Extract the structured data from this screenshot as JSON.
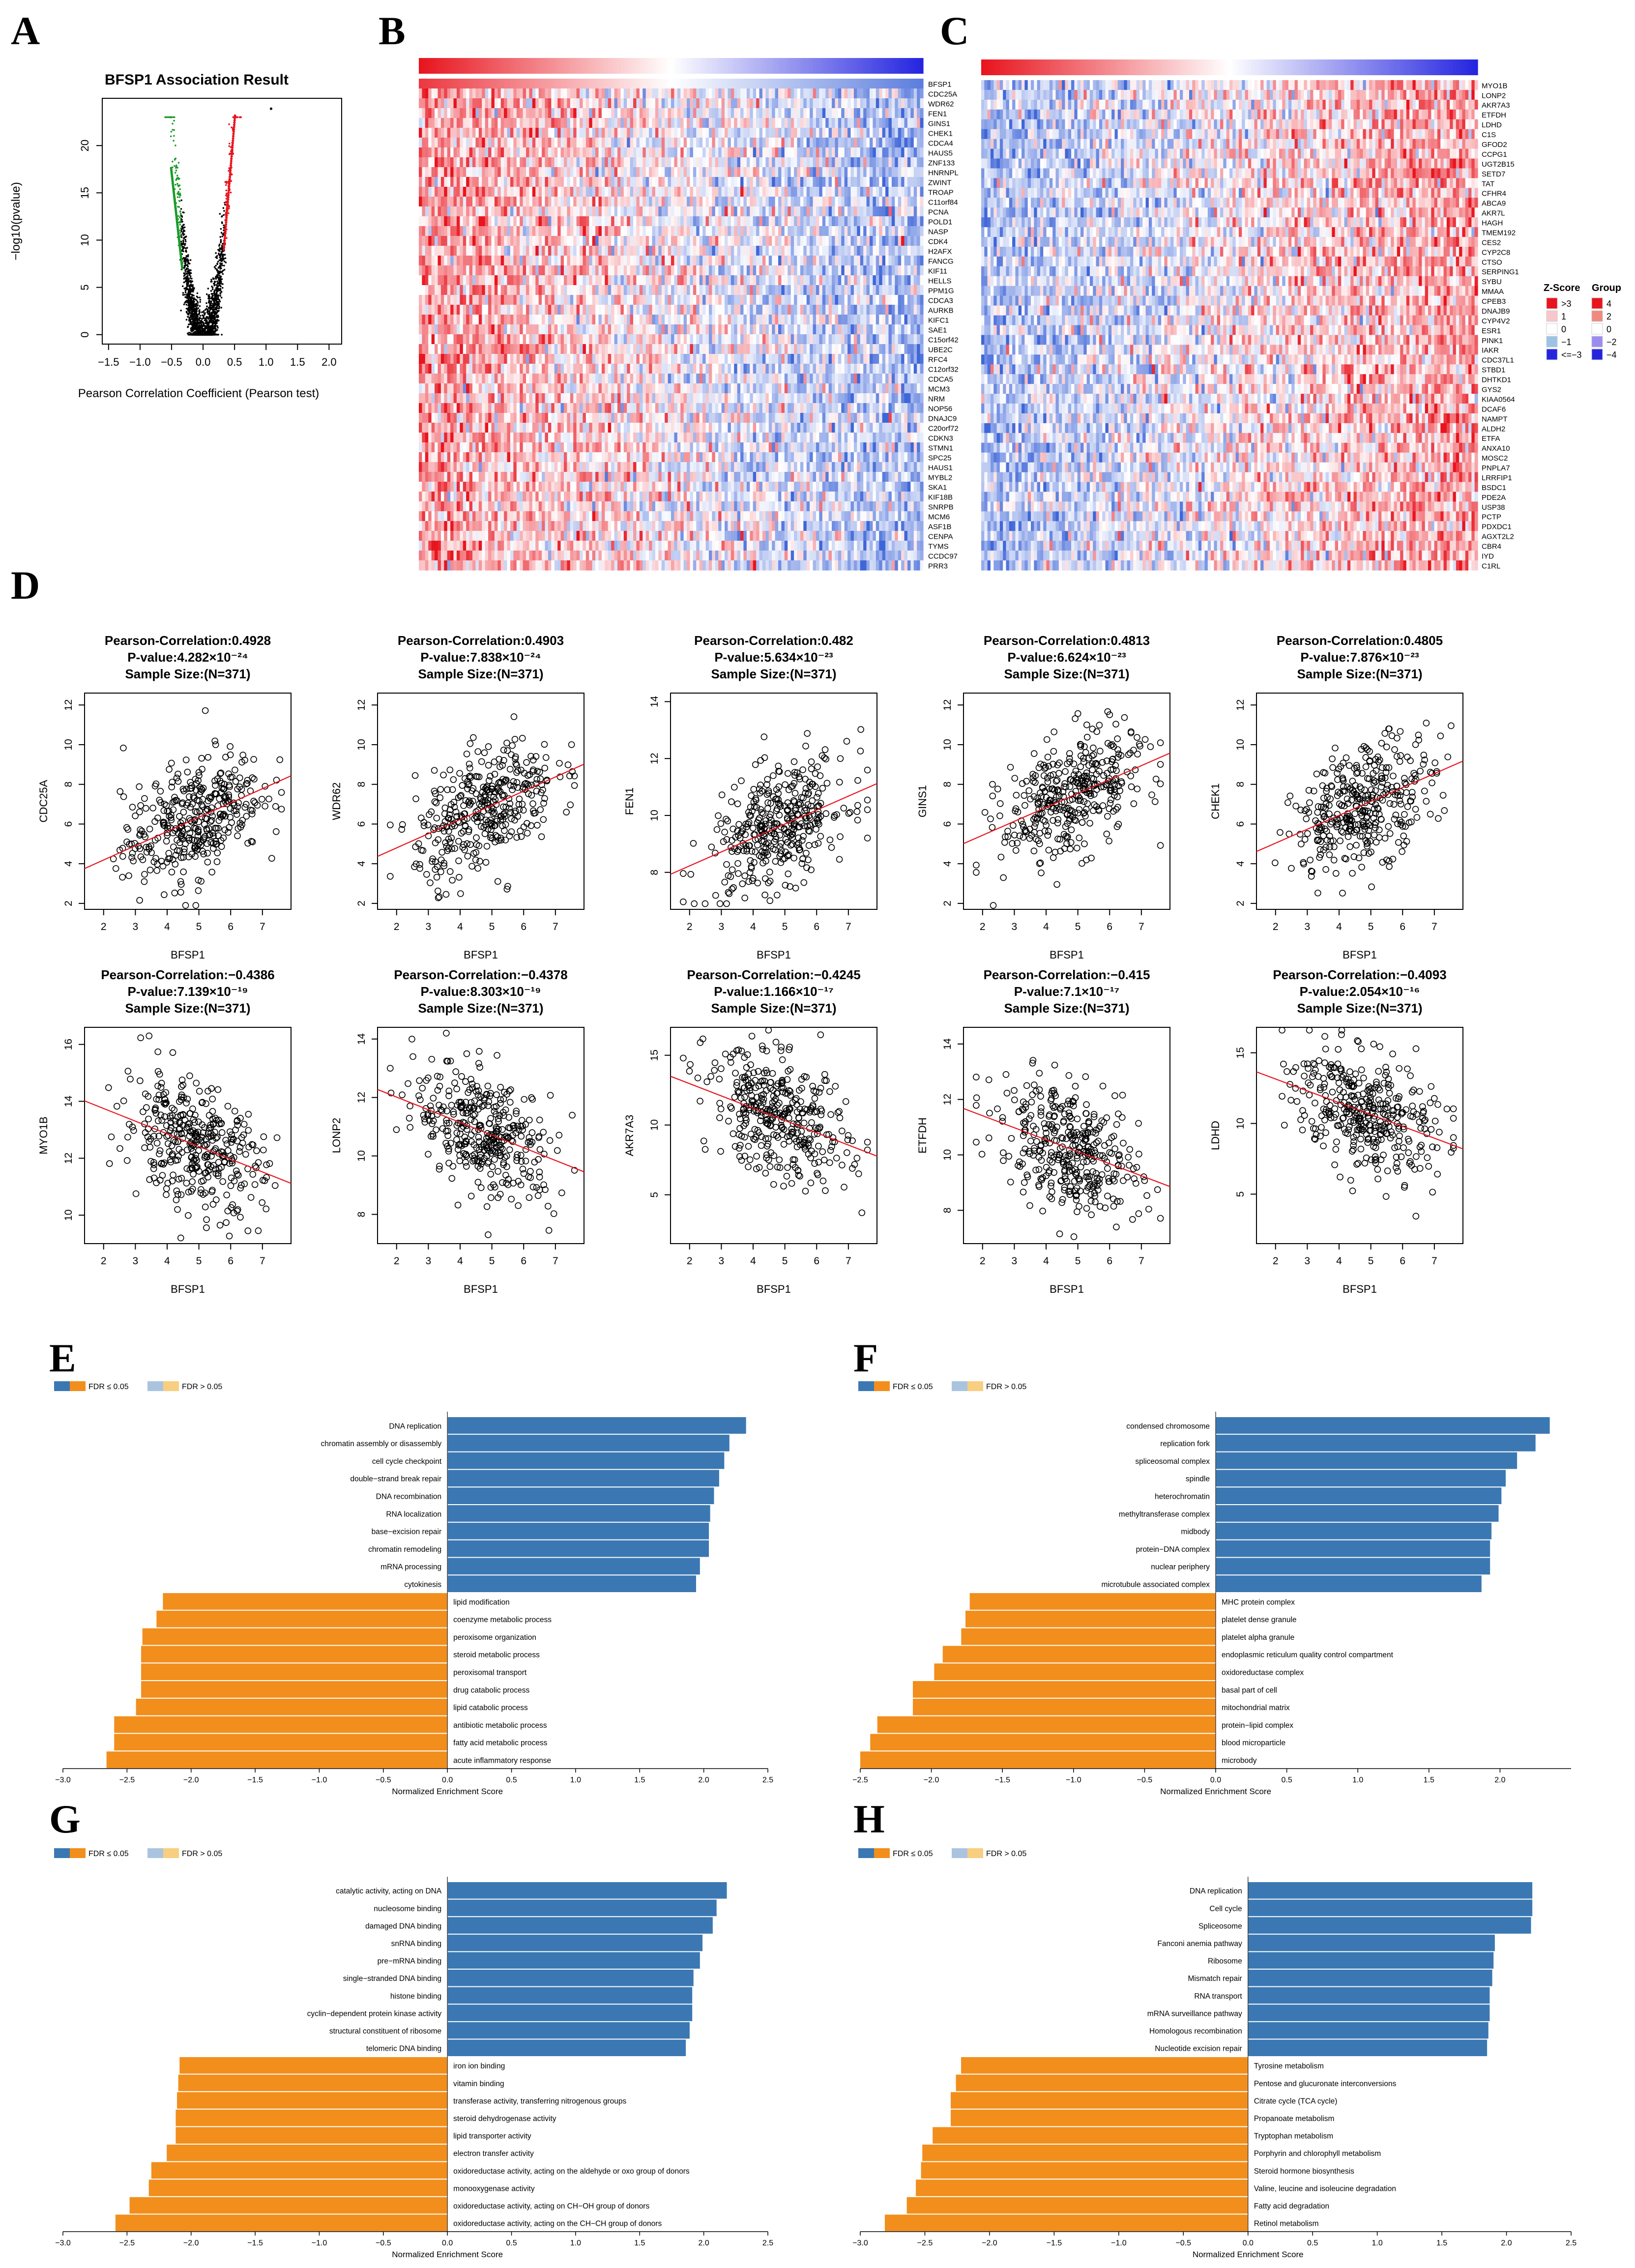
{
  "panels": {
    "A": "A",
    "B": "B",
    "C": "C",
    "D": "D",
    "E": "E",
    "F": "F",
    "G": "G",
    "H": "H"
  },
  "colors": {
    "positive": "#3b78b3",
    "negative": "#f28e1c",
    "volcano_pos": "#e8141e",
    "volcano_neg": "#1a9a28",
    "heat_high": "#e8141e",
    "heat_low": "#2525e0",
    "fit_line": "#e8141e"
  },
  "chart_data": [
    {
      "id": "A",
      "type": "scatter",
      "title": "BFSP1 Association Result",
      "xlabel": "Pearson Correlation Coefficient (Pearson test)",
      "ylabel": "−log10(pvalue)",
      "xlim": [
        -1.6,
        2.2
      ],
      "ylim": [
        -1,
        25
      ],
      "xticks": [
        "−1.5",
        "−1.0",
        "−0.5",
        "0.0",
        "0.5",
        "1.0",
        "1.5",
        "2.0"
      ],
      "xtick_values": [
        -1.5,
        -1.0,
        -0.5,
        0.0,
        0.5,
        1.0,
        1.5,
        2.0
      ],
      "yticks": [
        "0",
        "5",
        "10",
        "15",
        "20"
      ],
      "ytick_values": [
        0,
        5,
        10,
        15,
        20
      ],
      "outlier": {
        "x": 1.08,
        "y": 23.9
      }
    },
    {
      "id": "B",
      "type": "heatmap",
      "genes": [
        "BFSP1",
        "CDC25A",
        "WDR62",
        "FEN1",
        "GINS1",
        "CHEK1",
        "CDCA4",
        "HAUS5",
        "ZNF133",
        "HNRNPL",
        "ZWINT",
        "TROAP",
        "C11orf84",
        "PCNA",
        "POLD1",
        "NASP",
        "CDK4",
        "H2AFX",
        "FANCG",
        "KIF11",
        "HELLS",
        "PPM1G",
        "CDCA3",
        "AURKB",
        "KIFC1",
        "SAE1",
        "C15orf42",
        "UBE2C",
        "RFC4",
        "C12orf32",
        "CDCA5",
        "MCM3",
        "NRM",
        "NOP56",
        "DNAJC9",
        "C20orf72",
        "CDKN3",
        "STMN1",
        "SPC25",
        "HAUS1",
        "MYBL2",
        "SKA1",
        "KIF18B",
        "SNRPB",
        "MCM6",
        "ASF1B",
        "CENPA",
        "TYMS",
        "CCDC97",
        "PRR3"
      ]
    },
    {
      "id": "C",
      "type": "heatmap",
      "genes": [
        "MYO1B",
        "LONP2",
        "AKR7A3",
        "ETFDH",
        "LDHD",
        "C1S",
        "GFOD2",
        "CCPG1",
        "UGT2B15",
        "SETD7",
        "TAT",
        "CFHR4",
        "ABCA9",
        "AKR7L",
        "HAGH",
        "TMEM192",
        "CES2",
        "CYP2C8",
        "CTSO",
        "SERPING1",
        "SYBU",
        "MMAA",
        "CPEB3",
        "DNAJB9",
        "CYP4V2",
        "ESR1",
        "PINK1",
        "IAKR",
        "CDC37L1",
        "STBD1",
        "DHTKD1",
        "GYS2",
        "KIAA0564",
        "DCAF6",
        "NAMPT",
        "ALDH2",
        "ETFA",
        "ANXA10",
        "MOSC2",
        "PNPLA7",
        "LRRFIP1",
        "BSDC1",
        "PDE2A",
        "USP38",
        "PCTP",
        "PDXDC1",
        "AGXT2L2",
        "CBR4",
        "IYD",
        "C1RL"
      ],
      "legend": {
        "zscore_title": "Z-Score",
        "group_title": "Group",
        "zscore_labels": [
          ">3",
          "1",
          "0",
          "−1",
          "<=−3"
        ],
        "group_labels": [
          "4",
          "2",
          "0",
          "−2",
          "−4"
        ]
      }
    },
    {
      "id": "D",
      "type": "scatter",
      "n_points": 371,
      "plots": [
        {
          "ylabel": "CDC25A",
          "xlabel": "BFSP1",
          "title1": "Pearson-Correlation:0.4928",
          "title2": "P-value:4.282×10⁻²⁴",
          "title3": "Sample Size:(N=371)",
          "r": 0.4928,
          "xlim": [
            1.4,
            7.9
          ],
          "ylim": [
            1.7,
            12.6
          ],
          "xticks": [
            2,
            3,
            4,
            5,
            6,
            7
          ],
          "yticks": [
            2,
            4,
            6,
            8,
            10,
            12
          ],
          "ymean": 6.2
        },
        {
          "ylabel": "WDR62",
          "xlabel": "BFSP1",
          "title1": "Pearson-Correlation:0.4903",
          "title2": "P-value:7.838×10⁻²⁴",
          "title3": "Sample Size:(N=371)",
          "r": 0.4903,
          "xlim": [
            1.4,
            7.9
          ],
          "ylim": [
            1.7,
            12.6
          ],
          "xticks": [
            2,
            3,
            4,
            5,
            6,
            7
          ],
          "yticks": [
            2,
            4,
            6,
            8,
            10,
            12
          ],
          "ymean": 6.8
        },
        {
          "ylabel": "FEN1",
          "xlabel": "BFSP1",
          "title1": "Pearson-Correlation:0.482",
          "title2": "P-value:5.634×10⁻²³",
          "title3": "Sample Size:(N=371)",
          "r": 0.482,
          "xlim": [
            1.4,
            7.9
          ],
          "ylim": [
            6.7,
            14.3
          ],
          "xticks": [
            2,
            3,
            4,
            5,
            6,
            7
          ],
          "yticks": [
            8,
            10,
            12,
            14
          ],
          "ymean": 9.6
        },
        {
          "ylabel": "GINS1",
          "xlabel": "BFSP1",
          "title1": "Pearson-Correlation:0.4813",
          "title2": "P-value:6.624×10⁻²³",
          "title3": "Sample Size:(N=371)",
          "r": 0.4813,
          "xlim": [
            1.4,
            7.9
          ],
          "ylim": [
            1.7,
            12.6
          ],
          "xticks": [
            2,
            3,
            4,
            5,
            6,
            7
          ],
          "yticks": [
            2,
            4,
            6,
            8,
            10,
            12
          ],
          "ymean": 7.4
        },
        {
          "ylabel": "CHEK1",
          "xlabel": "BFSP1",
          "title1": "Pearson-Correlation:0.4805",
          "title2": "P-value:7.876×10⁻²³",
          "title3": "Sample Size:(N=371)",
          "r": 0.4805,
          "xlim": [
            1.4,
            7.9
          ],
          "ylim": [
            1.7,
            12.6
          ],
          "xticks": [
            2,
            3,
            4,
            5,
            6,
            7
          ],
          "yticks": [
            2,
            4,
            6,
            8,
            10,
            12
          ],
          "ymean": 7.0
        },
        {
          "ylabel": "MYO1B",
          "xlabel": "BFSP1",
          "title1": "Pearson-Correlation:−0.4386",
          "title2": "P-value:7.139×10⁻¹⁹",
          "title3": "Sample Size:(N=371)",
          "r": -0.4386,
          "xlim": [
            1.4,
            7.9
          ],
          "ylim": [
            9.0,
            16.6
          ],
          "xticks": [
            2,
            3,
            4,
            5,
            6,
            7
          ],
          "yticks": [
            10,
            12,
            14,
            16
          ],
          "ymean": 12.5
        },
        {
          "ylabel": "LONP2",
          "xlabel": "BFSP1",
          "title1": "Pearson-Correlation:−0.4378",
          "title2": "P-value:8.303×10⁻¹⁹",
          "title3": "Sample Size:(N=371)",
          "r": -0.4378,
          "xlim": [
            1.4,
            7.9
          ],
          "ylim": [
            7.0,
            14.4
          ],
          "xticks": [
            2,
            3,
            4,
            5,
            6,
            7
          ],
          "yticks": [
            8,
            10,
            12,
            14
          ],
          "ymean": 10.8
        },
        {
          "ylabel": "AKR7A3",
          "xlabel": "BFSP1",
          "title1": "Pearson-Correlation:−0.4245",
          "title2": "P-value:1.166×10⁻¹⁷",
          "title3": "Sample Size:(N=371)",
          "r": -0.4245,
          "xlim": [
            1.4,
            7.9
          ],
          "ylim": [
            1.5,
            17.0
          ],
          "xticks": [
            2,
            3,
            4,
            5,
            6,
            7
          ],
          "yticks": [
            5,
            10,
            15
          ],
          "ymean": 10.5
        },
        {
          "ylabel": "ETFDH",
          "xlabel": "BFSP1",
          "title1": "Pearson-Correlation:−0.415",
          "title2": "P-value:7.1×10⁻¹⁷",
          "title3": "Sample Size:(N=371)",
          "r": -0.415,
          "xlim": [
            1.4,
            7.9
          ],
          "ylim": [
            6.8,
            14.6
          ],
          "xticks": [
            2,
            3,
            4,
            5,
            6,
            7
          ],
          "yticks": [
            8,
            10,
            12,
            14
          ],
          "ymean": 10.2
        },
        {
          "ylabel": "LDHD",
          "xlabel": "BFSP1",
          "title1": "Pearson-Correlation:−0.4093",
          "title2": "P-value:2.054×10⁻¹⁶",
          "title3": "Sample Size:(N=371)",
          "r": -0.4093,
          "xlim": [
            1.4,
            7.9
          ],
          "ylim": [
            1.5,
            16.8
          ],
          "xticks": [
            2,
            3,
            4,
            5,
            6,
            7
          ],
          "yticks": [
            5,
            10,
            15
          ],
          "ymean": 10.8
        }
      ]
    },
    {
      "id": "E",
      "type": "bar",
      "legend": [
        "FDR ≤ 0.05",
        "FDR > 0.05"
      ],
      "xlabel": "Normalized Enrichment Score",
      "xlim": [
        -3.0,
        2.5
      ],
      "xticks": [
        -3.0,
        -2.5,
        -2.0,
        -1.5,
        -1.0,
        -0.5,
        0.0,
        0.5,
        1.0,
        1.5,
        2.0,
        2.5
      ],
      "categories": [
        "DNA replication",
        "chromatin assembly or disassembly",
        "cell cycle checkpoint",
        "double−strand break repair",
        "DNA recombination",
        "RNA localization",
        "base−excision repair",
        "chromatin remodeling",
        "mRNA processing",
        "cytokinesis",
        "lipid modification",
        "coenzyme metabolic process",
        "peroxisome organization",
        "steroid metabolic process",
        "peroxisomal transport",
        "drug catabolic process",
        "lipid catabolic process",
        "antibiotic metabolic process",
        "fatty acid metabolic process",
        "acute inflammatory response"
      ],
      "values": [
        2.33,
        2.2,
        2.16,
        2.12,
        2.08,
        2.05,
        2.04,
        2.04,
        1.97,
        1.94,
        -2.22,
        -2.27,
        -2.38,
        -2.39,
        -2.39,
        -2.39,
        -2.43,
        -2.6,
        -2.6,
        -2.66
      ]
    },
    {
      "id": "F",
      "type": "bar",
      "legend": [
        "FDR ≤ 0.05",
        "FDR > 0.05"
      ],
      "xlabel": "Normalized Enrichment Score",
      "xlim": [
        -2.5,
        2.5
      ],
      "xticks": [
        -2.5,
        -2.0,
        -1.5,
        -1.0,
        -0.5,
        0.0,
        0.5,
        1.0,
        1.5,
        2.0
      ],
      "categories": [
        "condensed chromosome",
        "replication fork",
        "spliceosomal complex",
        "spindle",
        "heterochromatin",
        "methyltransferase complex",
        "midbody",
        "protein−DNA complex",
        "nuclear periphery",
        "microtubule associated complex",
        "MHC protein complex",
        "platelet dense granule",
        "platelet alpha granule",
        "endoplasmic reticulum quality control compartment",
        "oxidoreductase complex",
        "basal part of cell",
        "mitochondrial matrix",
        "protein−lipid complex",
        "blood microparticle",
        "microbody"
      ],
      "values": [
        2.35,
        2.25,
        2.12,
        2.04,
        2.01,
        1.99,
        1.94,
        1.93,
        1.93,
        1.87,
        -1.73,
        -1.76,
        -1.79,
        -1.92,
        -1.98,
        -2.13,
        -2.13,
        -2.38,
        -2.43,
        -2.5
      ]
    },
    {
      "id": "G",
      "type": "bar",
      "legend": [
        "FDR ≤ 0.05",
        "FDR > 0.05"
      ],
      "xlabel": "Normalized Enrichment Score",
      "xlim": [
        -3.0,
        2.5
      ],
      "xticks": [
        -3.0,
        -2.5,
        -2.0,
        -1.5,
        -1.0,
        -0.5,
        0.0,
        0.5,
        1.0,
        1.5,
        2.0,
        2.5
      ],
      "categories": [
        "catalytic activity, acting on DNA",
        "nucleosome binding",
        "damaged DNA binding",
        "snRNA binding",
        "pre−mRNA binding",
        "single−stranded DNA binding",
        "histone binding",
        "cyclin−dependent protein kinase activity",
        "structural constituent of ribosome",
        "telomeric DNA binding",
        "iron ion binding",
        "vitamin binding",
        "transferase activity, transferring nitrogenous groups",
        "steroid dehydrogenase activity",
        "lipid transporter activity",
        "electron transfer activity",
        "oxidoreductase activity, acting on the aldehyde or oxo group of donors",
        "monooxygenase activity",
        "oxidoreductase activity, acting on CH−OH group of donors",
        "oxidoreductase activity, acting on the CH−CH group of donors"
      ],
      "values": [
        2.18,
        2.1,
        2.07,
        1.99,
        1.97,
        1.92,
        1.91,
        1.91,
        1.89,
        1.86,
        -2.09,
        -2.1,
        -2.11,
        -2.12,
        -2.12,
        -2.19,
        -2.31,
        -2.33,
        -2.48,
        -2.59
      ]
    },
    {
      "id": "H",
      "type": "bar",
      "legend": [
        "FDR ≤ 0.05",
        "FDR > 0.05"
      ],
      "xlabel": "Normalized Enrichment Score",
      "xlim": [
        -3.0,
        2.5
      ],
      "xticks": [
        -3.0,
        -2.5,
        -2.0,
        -1.5,
        -1.0,
        -0.5,
        0.0,
        0.5,
        1.0,
        1.5,
        2.0,
        2.5
      ],
      "categories": [
        "DNA replication",
        "Cell cycle",
        "Spliceosome",
        "Fanconi anemia pathway",
        "Ribosome",
        "Mismatch repair",
        "RNA transport",
        "mRNA surveillance pathway",
        "Homologous recombination",
        "Nucleotide excision repair",
        "Tyrosine metabolism",
        "Pentose and glucuronate interconversions",
        "Citrate cycle (TCA cycle)",
        "Propanoate metabolism",
        "Tryptophan metabolism",
        "Porphyrin and chlorophyll metabolism",
        "Steroid hormone biosynthesis",
        "Valine, leucine and isoleucine degradation",
        "Fatty acid degradation",
        "Retinol metabolism"
      ],
      "values": [
        2.2,
        2.2,
        2.19,
        1.91,
        1.9,
        1.89,
        1.87,
        1.87,
        1.86,
        1.85,
        -2.22,
        -2.26,
        -2.3,
        -2.3,
        -2.44,
        -2.52,
        -2.53,
        -2.57,
        -2.64,
        -2.81
      ]
    }
  ]
}
